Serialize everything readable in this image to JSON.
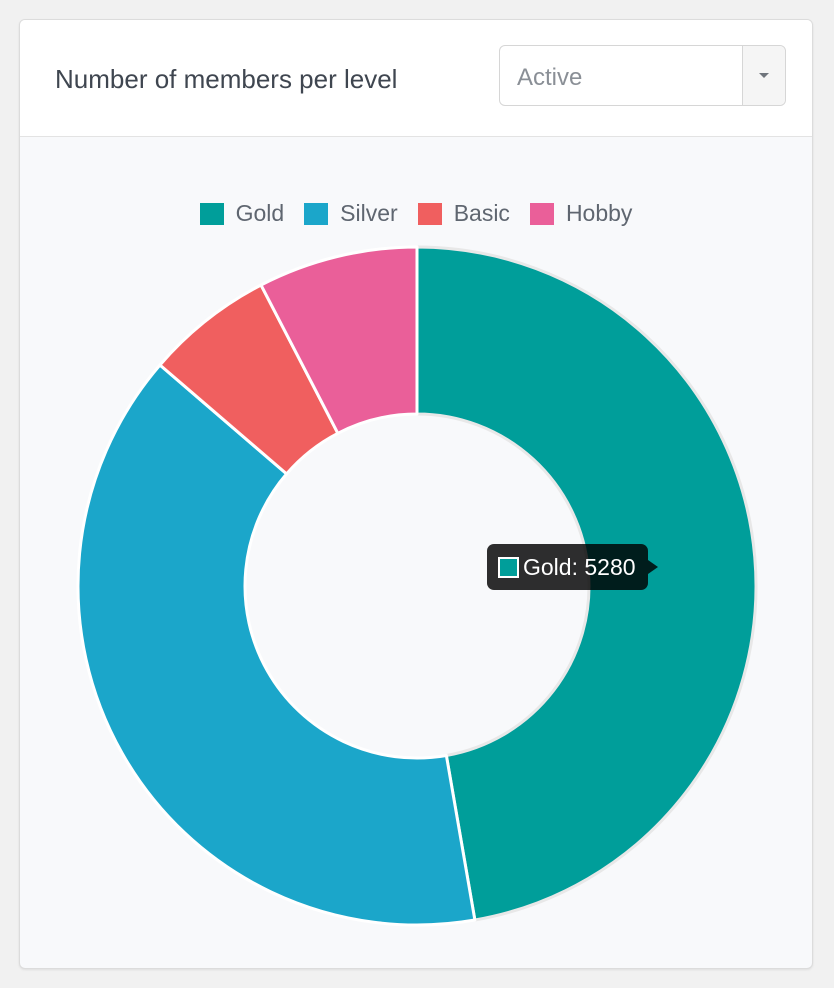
{
  "card": {
    "title": "Number of members per level"
  },
  "filter": {
    "selected": "Active"
  },
  "legend": [
    {
      "label": "Gold",
      "color": "#009e9a"
    },
    {
      "label": "Silver",
      "color": "#1ba6ca"
    },
    {
      "label": "Basic",
      "color": "#f05f5f"
    },
    {
      "label": "Hobby",
      "color": "#ea5f99"
    }
  ],
  "tooltip": {
    "label": "Gold",
    "value": "5280",
    "text": "Gold: 5280",
    "color": "#009e9a"
  },
  "chart_data": {
    "type": "pie",
    "donut": true,
    "categories": [
      "Gold",
      "Silver",
      "Basic",
      "Hobby"
    ],
    "values": [
      5280,
      4360,
      680,
      850
    ],
    "colors": [
      "#009e9a",
      "#1ba6ca",
      "#f05f5f",
      "#ea5f99"
    ],
    "legend_position": "top"
  }
}
